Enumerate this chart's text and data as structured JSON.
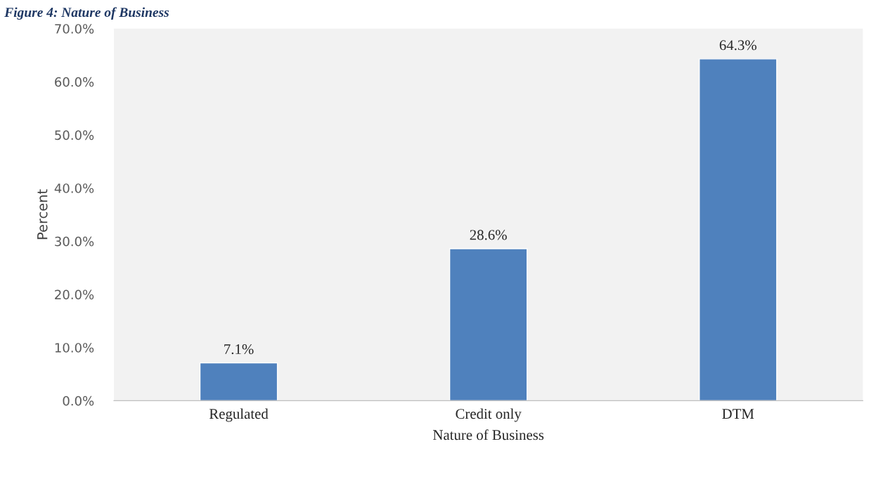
{
  "chart_data": {
    "type": "bar",
    "title": "Figure 4: Nature of Business",
    "xlabel": "Nature of Business",
    "ylabel": "Percent",
    "categories": [
      "Regulated",
      "Credit only",
      "DTM"
    ],
    "values": [
      7.1,
      28.6,
      64.3
    ],
    "value_labels": [
      "7.1%",
      "28.6%",
      "64.3%"
    ],
    "color": "#4f81bd",
    "ylim": [
      0,
      70
    ],
    "yticks": [
      {
        "value": 0,
        "label": "0.0%"
      },
      {
        "value": 10,
        "label": "10.0%"
      },
      {
        "value": 20,
        "label": "20.0%"
      },
      {
        "value": 30,
        "label": "30.0%"
      },
      {
        "value": 40,
        "label": "40.0%"
      },
      {
        "value": 50,
        "label": "50.0%"
      },
      {
        "value": 60,
        "label": "60.0%"
      },
      {
        "value": 70,
        "label": "70.0%"
      }
    ],
    "grid": false,
    "legend": false
  }
}
